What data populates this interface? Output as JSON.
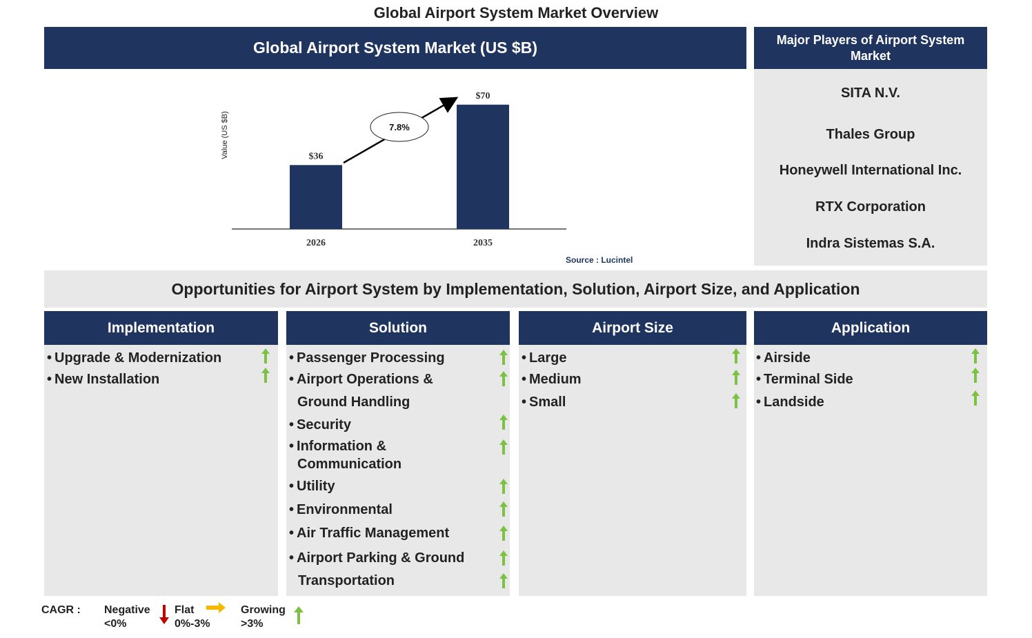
{
  "title": "Global Airport System Market Overview",
  "chart_header": "Global Airport System Market (US $B)",
  "players_header": "Major Players of Airport System Market",
  "players": [
    "SITA N.V.",
    "Thales Group",
    "Honeywell International Inc.",
    "RTX Corporation",
    "Indra Sistemas S.A."
  ],
  "chart_data": {
    "type": "bar",
    "categories": [
      "2026",
      "2035"
    ],
    "values": [
      36,
      70
    ],
    "value_labels": [
      "$36",
      "$70"
    ],
    "ylabel": "Value (US $B)",
    "cagr_label": "7.8%",
    "ylim": [
      0,
      80
    ],
    "color": "#1f3560",
    "source": "Source : Lucintel"
  },
  "opportunities_title": "Opportunities for Airport System by Implementation, Solution, Airport Size, and Application",
  "columns": [
    {
      "title": "Implementation",
      "items": [
        "Upgrade & Modernization",
        "New Installation"
      ]
    },
    {
      "title": "Solution",
      "items": [
        "Passenger Processing",
        "Airport Operations &",
        "Ground Handling",
        "Security",
        "Information &",
        "Communication",
        "Utility",
        "Environmental",
        "Air Traffic Management",
        "Airport Parking & Ground",
        "Transportation"
      ]
    },
    {
      "title": "Airport Size",
      "items": [
        "Large",
        "Medium",
        "Small"
      ]
    },
    {
      "title": "Application",
      "items": [
        "Airside",
        "Terminal Side",
        "Landside"
      ]
    }
  ],
  "legend": {
    "cagr": "CAGR :",
    "negative": "Negative",
    "negative_range": "<0%",
    "flat": "Flat",
    "flat_range": "0%-3%",
    "growing": "Growing",
    "growing_range": ">3%"
  },
  "colors": {
    "navy": "#1f3560",
    "panel": "#e8e8e8",
    "growing": "#7dc142",
    "flat": "#f5b800",
    "negative": "#c00000"
  }
}
